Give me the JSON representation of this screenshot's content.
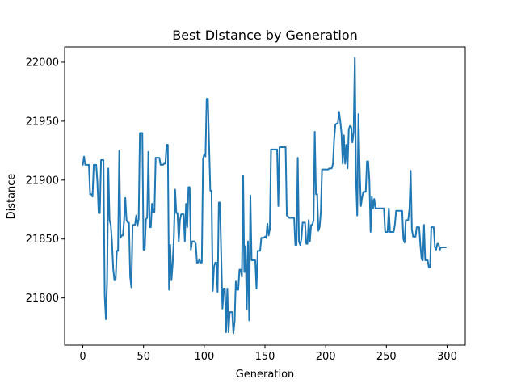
{
  "chart_data": {
    "type": "line",
    "title": "Best Distance by Generation",
    "xlabel": "Generation",
    "ylabel": "Distance",
    "xlim": [
      -15,
      315
    ],
    "ylim": [
      21760,
      22013
    ],
    "xticks": [
      0,
      50,
      100,
      150,
      200,
      250,
      300
    ],
    "yticks": [
      21800,
      21850,
      21900,
      21950,
      22000
    ],
    "grid": false,
    "legend": "none",
    "colors": {
      "line": "#1f77b4",
      "axes": "#000000",
      "background": "#ffffff"
    },
    "series": [
      {
        "values": [
          21913,
          21920,
          21913,
          21913,
          21913,
          21913,
          21888,
          21888,
          21886,
          21913,
          21913,
          21913,
          21898,
          21872,
          21872,
          21917,
          21917,
          21917,
          21802,
          21782,
          21815,
          21910,
          21866,
          21862,
          21848,
          21825,
          21815,
          21815,
          21840,
          21840,
          21925,
          21851,
          21853,
          21853,
          21866,
          21885,
          21866,
          21864,
          21864,
          21818,
          21809,
          21862,
          21862,
          21862,
          21870,
          21861,
          21867,
          21940,
          21940,
          21940,
          21841,
          21841,
          21867,
          21868,
          21924,
          21860,
          21860,
          21880,
          21873,
          21873,
          21919,
          21919,
          21919,
          21919,
          21913,
          21913,
          21913,
          21914,
          21914,
          21930,
          21930,
          21807,
          21845,
          21815,
          21829,
          21852,
          21892,
          21872,
          21872,
          21848,
          21866,
          21871,
          21871,
          21871,
          21848,
          21880,
          21860,
          21894,
          21894,
          21841,
          21848,
          21848,
          21848,
          21846,
          21830,
          21830,
          21833,
          21830,
          21830,
          21918,
          21922,
          21920,
          21969,
          21969,
          21930,
          21891,
          21891,
          21806,
          21826,
          21830,
          21830,
          21805,
          21881,
          21881,
          21836,
          21791,
          21808,
          21808,
          21771,
          21808,
          21771,
          21788,
          21788,
          21788,
          21770,
          21780,
          21814,
          21807,
          21807,
          21824,
          21824,
          21818,
          21904,
          21822,
          21844,
          21790,
          21848,
          21781,
          21887,
          21832,
          21832,
          21832,
          21832,
          21808,
          21840,
          21840,
          21840,
          21851,
          21851,
          21851,
          21852,
          21851,
          21863,
          21853,
          21858,
          21926,
          21926,
          21926,
          21926,
          21926,
          21926,
          21878,
          21928,
          21928,
          21928,
          21928,
          21928,
          21928,
          21870,
          21869,
          21868,
          21868,
          21868,
          21868,
          21868,
          21845,
          21845,
          21919,
          21848,
          21845,
          21850,
          21864,
          21864,
          21864,
          21846,
          21846,
          21866,
          21848,
          21862,
          21862,
          21866,
          21941,
          21888,
          21888,
          21857,
          21860,
          21873,
          21909,
          21909,
          21909,
          21909,
          21909,
          21909,
          21910,
          21910,
          21910,
          21914,
          21935,
          21947,
          21948,
          21948,
          21958,
          21950,
          21940,
          21914,
          21938,
          21914,
          21930,
          21910,
          21943,
          21946,
          21945,
          21932,
          21940,
          22004,
          21900,
          21870,
          21956,
          21910,
          21878,
          21885,
          21890,
          21890,
          21890,
          21916,
          21916,
          21900,
          21856,
          21886,
          21876,
          21884,
          21876,
          21876,
          21876,
          21876,
          21876,
          21876,
          21876,
          21876,
          21856,
          21856,
          21856,
          21876,
          21856,
          21856,
          21856,
          21856,
          21862,
          21874,
          21874,
          21874,
          21874,
          21874,
          21874,
          21850,
          21847,
          21866,
          21866,
          21866,
          21876,
          21908,
          21858,
          21852,
          21852,
          21852,
          21860,
          21860,
          21860,
          21845,
          21833,
          21832,
          21862,
          21832,
          21832,
          21832,
          21826,
          21826,
          21860,
          21860,
          21860,
          21843,
          21841,
          21846,
          21846,
          21841,
          21843,
          21843,
          21843,
          21843,
          21843
        ]
      }
    ]
  }
}
